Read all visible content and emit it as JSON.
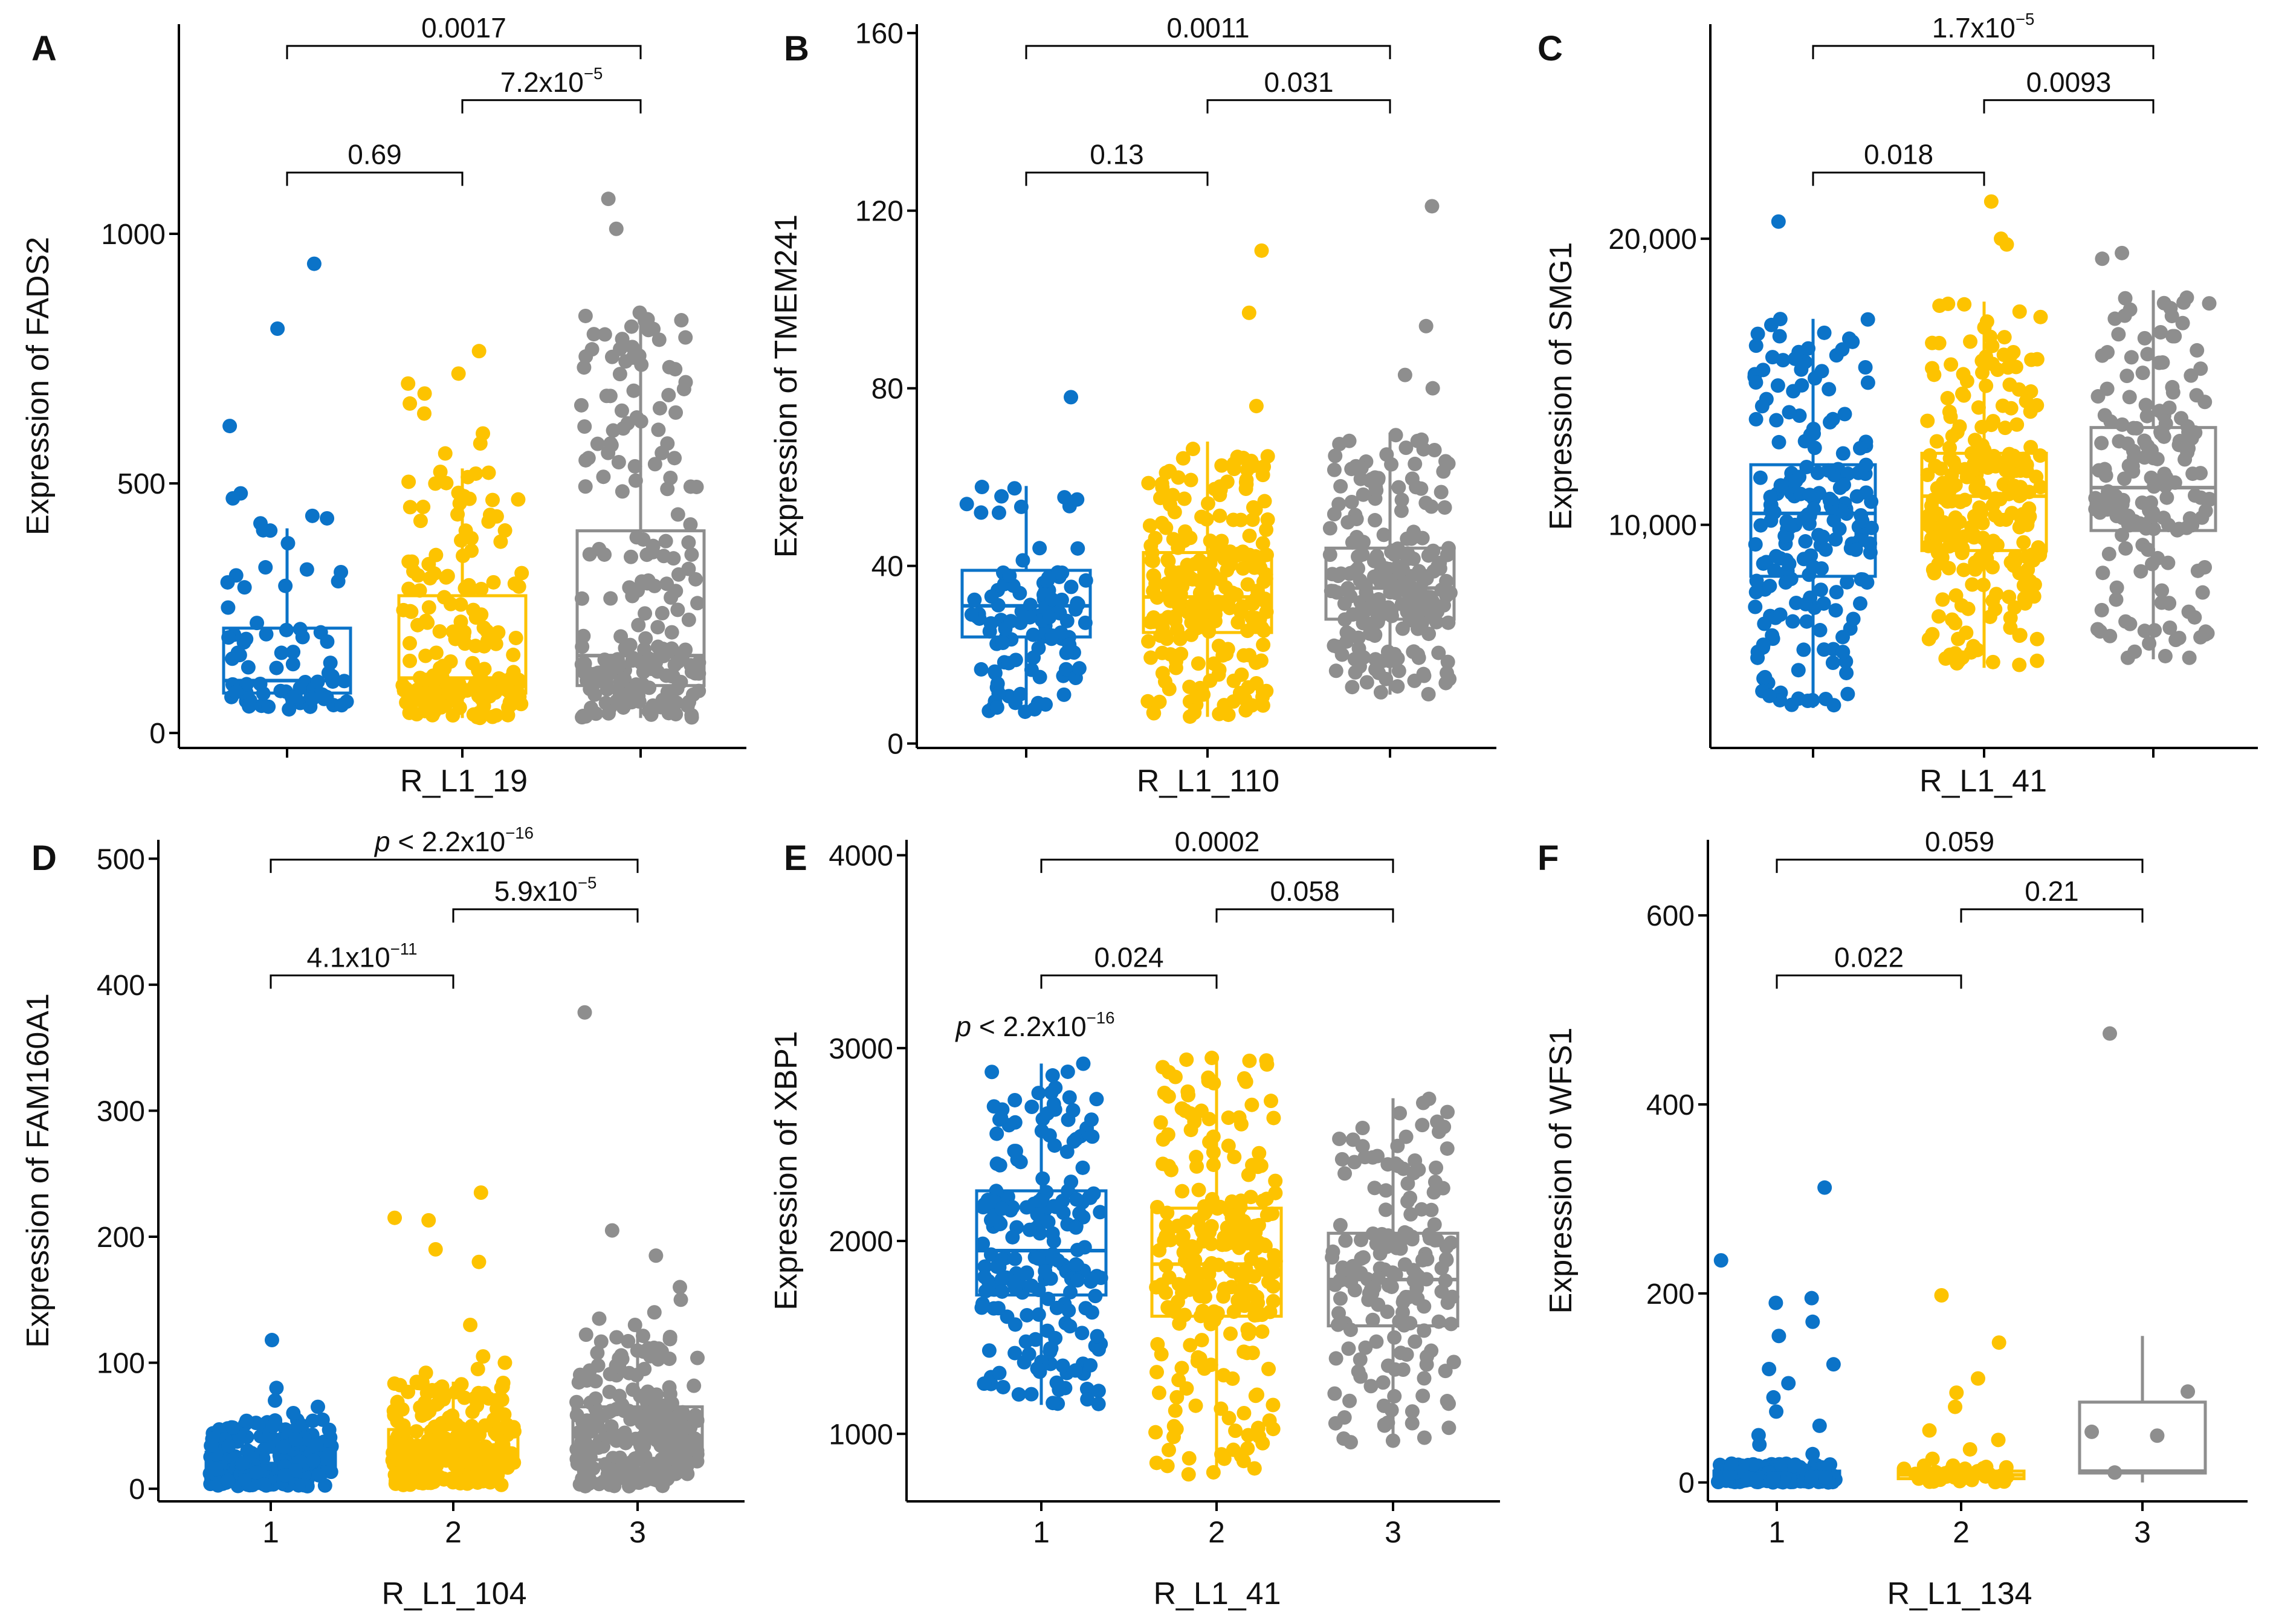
{
  "colors": {
    "group1": "#0B73C8",
    "group2": "#FDC300",
    "group3": "#8E8E8E",
    "axis": "#000000"
  },
  "chart_data": [
    {
      "panel": "A",
      "type": "box",
      "xlabel": "R_L1_19",
      "ylabel": "Expression of FADS2",
      "yticks": [
        0,
        500,
        1000
      ],
      "ytick_labels": [
        "0",
        "500",
        "1000"
      ],
      "ylim": [
        -30,
        1420
      ],
      "categories": [
        "1",
        "2",
        "3"
      ],
      "show_xtick_labels": false,
      "series": [
        {
          "name": "1",
          "q1": 80,
          "median": 105,
          "q3": 210,
          "whisker_low": 45,
          "whisker_high": 410,
          "n": 70,
          "outliers": [
            480,
            470,
            435,
            430,
            420,
            615,
            810,
            940
          ]
        },
        {
          "name": "2",
          "q1": 80,
          "median": 110,
          "q3": 275,
          "whisker_low": 30,
          "whisker_high": 530,
          "n": 200,
          "outliers": [
            560,
            580,
            600,
            640,
            660,
            680,
            700,
            720,
            765
          ]
        },
        {
          "name": "3",
          "q1": 95,
          "median": 155,
          "q3": 405,
          "whisker_low": 30,
          "whisker_high": 845,
          "n": 220,
          "outliers": [
            1010,
            1070
          ]
        }
      ],
      "comparisons": [
        {
          "groups": [
            1,
            2
          ],
          "label": "0.69",
          "level": 1
        },
        {
          "groups": [
            2,
            3
          ],
          "label": "7.2x10",
          "exp": "−5",
          "level": 2
        },
        {
          "groups": [
            1,
            3
          ],
          "label": "0.0017",
          "level": 3
        }
      ]
    },
    {
      "panel": "B",
      "type": "box",
      "xlabel": "R_L1_110",
      "ylabel": "Expression of TMEM241",
      "yticks": [
        0,
        40,
        80,
        120,
        160
      ],
      "ytick_labels": [
        "0",
        "40",
        "80",
        "120",
        "160"
      ],
      "ylim": [
        -1,
        162
      ],
      "categories": [
        "1",
        "2",
        "3"
      ],
      "show_xtick_labels": false,
      "series": [
        {
          "name": "1",
          "q1": 24,
          "median": 31,
          "q3": 39,
          "whisker_low": 7,
          "whisker_high": 58,
          "n": 110,
          "outliers": [
            78
          ]
        },
        {
          "name": "2",
          "q1": 25,
          "median": 33,
          "q3": 43,
          "whisker_low": 6,
          "whisker_high": 68,
          "n": 250,
          "outliers": [
            76,
            97,
            111
          ]
        },
        {
          "name": "3",
          "q1": 28,
          "median": 35,
          "q3": 44,
          "whisker_low": 11,
          "whisker_high": 70,
          "n": 220,
          "outliers": [
            80,
            83,
            94,
            121
          ]
        }
      ],
      "comparisons": [
        {
          "groups": [
            1,
            2
          ],
          "label": "0.13",
          "level": 1
        },
        {
          "groups": [
            2,
            3
          ],
          "label": "0.031",
          "level": 2
        },
        {
          "groups": [
            1,
            3
          ],
          "label": "0.0011",
          "level": 3
        }
      ]
    },
    {
      "panel": "C",
      "type": "box",
      "xlabel": "R_L1_41",
      "ylabel": "Expression of SMG1",
      "yticks": [
        10000,
        20000
      ],
      "ytick_labels": [
        "10,000",
        "20,000"
      ],
      "ylim": [
        2200,
        27500
      ],
      "categories": [
        "1",
        "2",
        "3"
      ],
      "show_xtick_labels": false,
      "series": [
        {
          "name": "1",
          "q1": 8200,
          "median": 10400,
          "q3": 12100,
          "whisker_low": 3600,
          "whisker_high": 17200,
          "n": 200,
          "outliers": [
            20600
          ]
        },
        {
          "name": "2",
          "q1": 9100,
          "median": 11000,
          "q3": 12500,
          "whisker_low": 5000,
          "whisker_high": 17800,
          "n": 250,
          "outliers": [
            19800,
            20000,
            21300
          ]
        },
        {
          "name": "3",
          "q1": 9800,
          "median": 11300,
          "q3": 13400,
          "whisker_low": 5300,
          "whisker_high": 18200,
          "n": 180,
          "outliers": [
            19300,
            19500
          ]
        }
      ],
      "comparisons": [
        {
          "groups": [
            1,
            2
          ],
          "label": "0.018",
          "level": 1
        },
        {
          "groups": [
            2,
            3
          ],
          "label": "0.0093",
          "level": 2
        },
        {
          "groups": [
            1,
            3
          ],
          "label": "1.7x10",
          "exp": "−5",
          "level": 3
        }
      ]
    },
    {
      "panel": "D",
      "type": "box",
      "xlabel": "R_L1_104",
      "ylabel": "Expression of FAM160A1",
      "yticks": [
        0,
        100,
        200,
        300,
        400,
        500
      ],
      "ytick_labels": [
        "0",
        "100",
        "200",
        "300",
        "400",
        "500"
      ],
      "ylim": [
        -10,
        515
      ],
      "categories": [
        "1",
        "2",
        "3"
      ],
      "show_xtick_labels": true,
      "series": [
        {
          "name": "1",
          "q1": 12,
          "median": 20,
          "q3": 29,
          "whisker_low": 2,
          "whisker_high": 55,
          "n": 220,
          "outliers": [
            60,
            65,
            70,
            80,
            118
          ]
        },
        {
          "name": "2",
          "q1": 19,
          "median": 29,
          "q3": 47,
          "whisker_low": 2,
          "whisker_high": 85,
          "n": 260,
          "outliers": [
            92,
            95,
            100,
            105,
            130,
            180,
            190,
            213,
            215,
            235
          ]
        },
        {
          "name": "3",
          "q1": 23,
          "median": 42,
          "q3": 65,
          "whisker_low": 2,
          "whisker_high": 125,
          "n": 240,
          "outliers": [
            130,
            135,
            140,
            150,
            160,
            185,
            205,
            378
          ]
        }
      ],
      "comparisons": [
        {
          "groups": [
            1,
            2
          ],
          "label": "4.1x10",
          "exp": "−11",
          "level": 1
        },
        {
          "groups": [
            2,
            3
          ],
          "label": "5.9x10",
          "exp": "−5",
          "level": 2
        },
        {
          "groups": [
            1,
            3
          ],
          "label": "p < 2.2x10",
          "exp": "−16",
          "level": 3,
          "italic_p": true
        }
      ]
    },
    {
      "panel": "E",
      "type": "box",
      "xlabel": "R_L1_41",
      "ylabel": "Expression of XBP1",
      "yticks": [
        1000,
        2000,
        3000,
        4000
      ],
      "ytick_labels": [
        "1000",
        "2000",
        "3000",
        "4000"
      ],
      "ylim": [
        650,
        4080
      ],
      "categories": [
        "1",
        "2",
        "3"
      ],
      "show_xtick_labels": true,
      "series": [
        {
          "name": "1",
          "q1": 1720,
          "median": 1950,
          "q3": 2260,
          "whisker_low": 1150,
          "whisker_high": 2920,
          "n": 200,
          "outliers": []
        },
        {
          "name": "2",
          "q1": 1610,
          "median": 1880,
          "q3": 2170,
          "whisker_low": 800,
          "whisker_high": 2950,
          "n": 250,
          "outliers": [
            790
          ]
        },
        {
          "name": "3",
          "q1": 1560,
          "median": 1800,
          "q3": 2040,
          "whisker_low": 950,
          "whisker_high": 2740,
          "n": 180,
          "outliers": []
        }
      ],
      "comparisons": [
        {
          "groups": [
            1,
            2
          ],
          "label": "0.024",
          "level": 1
        },
        {
          "groups": [
            2,
            3
          ],
          "label": "0.058",
          "level": 2
        },
        {
          "groups": [
            1,
            3
          ],
          "label": "0.0002",
          "level": 3
        }
      ],
      "annotation": {
        "label": "p < 2.2x10",
        "exp": "−16",
        "italic_p": true
      }
    },
    {
      "panel": "F",
      "type": "box",
      "xlabel": "R_L1_134",
      "ylabel": "Expression of WFS1",
      "yticks": [
        0,
        200,
        400,
        600
      ],
      "ytick_labels": [
        "0",
        "200",
        "400",
        "600"
      ],
      "ylim": [
        -20,
        680
      ],
      "categories": [
        "1",
        "2",
        "3"
      ],
      "show_xtick_labels": true,
      "series": [
        {
          "name": "1",
          "q1": 3,
          "median": 6,
          "q3": 12,
          "whisker_low": 0,
          "whisker_high": 20,
          "n": 200,
          "outliers": [
            30,
            40,
            50,
            60,
            75,
            90,
            105,
            120,
            125,
            155,
            170,
            190,
            195,
            235,
            312
          ]
        },
        {
          "name": "2",
          "q1": 4,
          "median": 8,
          "q3": 12,
          "whisker_low": 0,
          "whisker_high": 18,
          "n": 40,
          "outliers": [
            25,
            35,
            45,
            55,
            80,
            95,
            110,
            148,
            198
          ]
        },
        {
          "name": "3",
          "q1": 10,
          "median": 12,
          "q3": 85,
          "whisker_low": 0,
          "whisker_high": 155,
          "n": 4,
          "outliers": [
            475
          ]
        }
      ],
      "comparisons": [
        {
          "groups": [
            1,
            2
          ],
          "label": "0.022",
          "level": 1
        },
        {
          "groups": [
            2,
            3
          ],
          "label": "0.21",
          "level": 2
        },
        {
          "groups": [
            1,
            3
          ],
          "label": "0.059",
          "level": 3
        }
      ]
    }
  ]
}
